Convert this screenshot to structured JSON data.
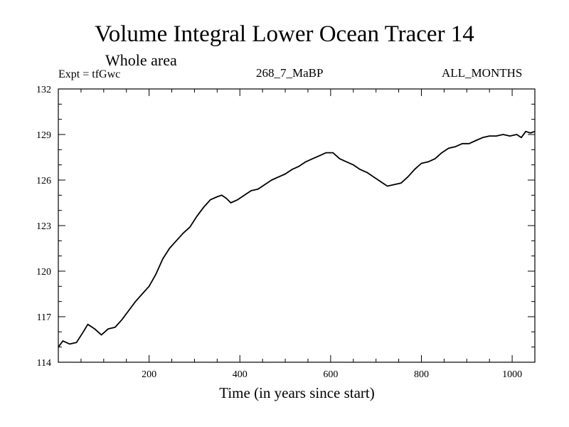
{
  "chart_data": {
    "type": "line",
    "title": "Volume Integral Lower Ocean Tracer 14",
    "subtitle": "Whole area",
    "experiment": "Expt = tfGwc",
    "run_label": "268_7_MaBP",
    "period": "ALL_MONTHS",
    "xlabel": "Time (in years since start)",
    "ylabel": "",
    "xlim": [
      0,
      1050
    ],
    "ylim": [
      114,
      132
    ],
    "xticks": [
      200,
      400,
      600,
      800,
      1000
    ],
    "yticks": [
      114,
      117,
      120,
      123,
      126,
      129,
      132
    ],
    "series": [
      {
        "name": "tfGwc",
        "x": [
          0,
          10,
          25,
          40,
          55,
          65,
          80,
          95,
          110,
          125,
          140,
          155,
          170,
          185,
          200,
          215,
          230,
          245,
          260,
          275,
          290,
          305,
          320,
          335,
          350,
          360,
          370,
          380,
          395,
          410,
          425,
          440,
          455,
          470,
          485,
          500,
          515,
          530,
          545,
          560,
          575,
          590,
          605,
          620,
          635,
          650,
          665,
          680,
          695,
          710,
          725,
          740,
          755,
          770,
          785,
          800,
          815,
          830,
          845,
          860,
          875,
          890,
          905,
          920,
          935,
          950,
          965,
          980,
          995,
          1010,
          1020,
          1030,
          1040,
          1050
        ],
        "y": [
          115.0,
          115.4,
          115.2,
          115.3,
          116.0,
          116.5,
          116.2,
          115.8,
          116.2,
          116.3,
          116.8,
          117.4,
          118.0,
          118.5,
          119.0,
          119.8,
          120.8,
          121.5,
          122.0,
          122.5,
          122.9,
          123.6,
          124.2,
          124.7,
          124.9,
          125.0,
          124.8,
          124.5,
          124.7,
          125.0,
          125.3,
          125.4,
          125.7,
          126.0,
          126.2,
          126.4,
          126.7,
          126.9,
          127.2,
          127.4,
          127.6,
          127.8,
          127.8,
          127.4,
          127.2,
          127.0,
          126.7,
          126.5,
          126.2,
          125.9,
          125.6,
          125.7,
          125.8,
          126.2,
          126.7,
          127.1,
          127.2,
          127.4,
          127.8,
          128.1,
          128.2,
          128.4,
          128.4,
          128.6,
          128.8,
          128.9,
          128.9,
          129.0,
          128.9,
          129.0,
          128.8,
          129.2,
          129.1,
          129.2
        ]
      }
    ]
  }
}
